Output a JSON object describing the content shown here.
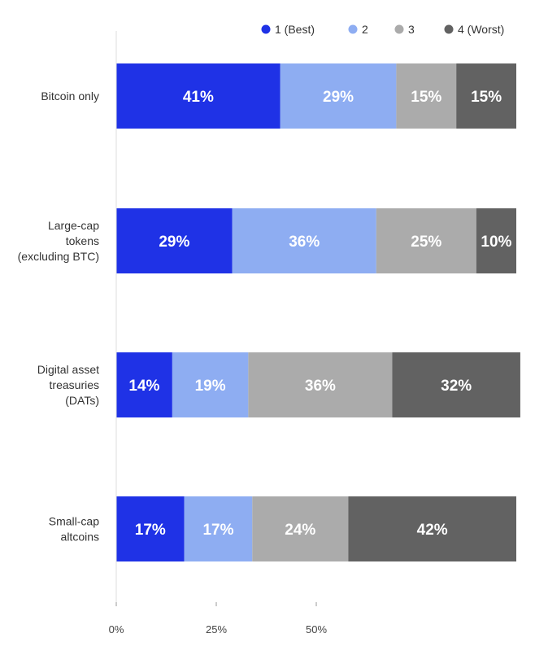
{
  "chart_data": {
    "type": "bar",
    "orientation": "horizontal",
    "stacked": true,
    "title": "",
    "xlabel": "",
    "ylabel": "",
    "xlim": [
      0,
      100
    ],
    "x_ticks": [
      {
        "value": 0,
        "label": "0%"
      },
      {
        "value": 25,
        "label": "25%"
      },
      {
        "value": 50,
        "label": "50%"
      }
    ],
    "categories": [
      [
        "Bitcoin only"
      ],
      [
        "Large-cap",
        "tokens",
        "(excluding BTC)"
      ],
      [
        "Digital asset",
        "treasuries",
        "(DATs)"
      ],
      [
        "Small-cap",
        "altcoins"
      ]
    ],
    "series": [
      {
        "name": "1 (Best)",
        "color": "#1f32e6",
        "values": [
          41,
          29,
          14,
          17
        ],
        "labels": [
          "41%",
          "29%",
          "14%",
          "17%"
        ]
      },
      {
        "name": "2",
        "color": "#8eadf2",
        "values": [
          29,
          36,
          19,
          17
        ],
        "labels": [
          "29%",
          "36%",
          "19%",
          "17%"
        ]
      },
      {
        "name": "3",
        "color": "#ababab",
        "values": [
          15,
          25,
          36,
          24
        ],
        "labels": [
          "15%",
          "25%",
          "36%",
          "24%"
        ]
      },
      {
        "name": "4 (Worst)",
        "color": "#626262",
        "values": [
          15,
          10,
          32,
          42
        ],
        "labels": [
          "15%",
          "10%",
          "32%",
          "42%"
        ]
      }
    ],
    "legend_position": "top-right",
    "grid": false
  }
}
